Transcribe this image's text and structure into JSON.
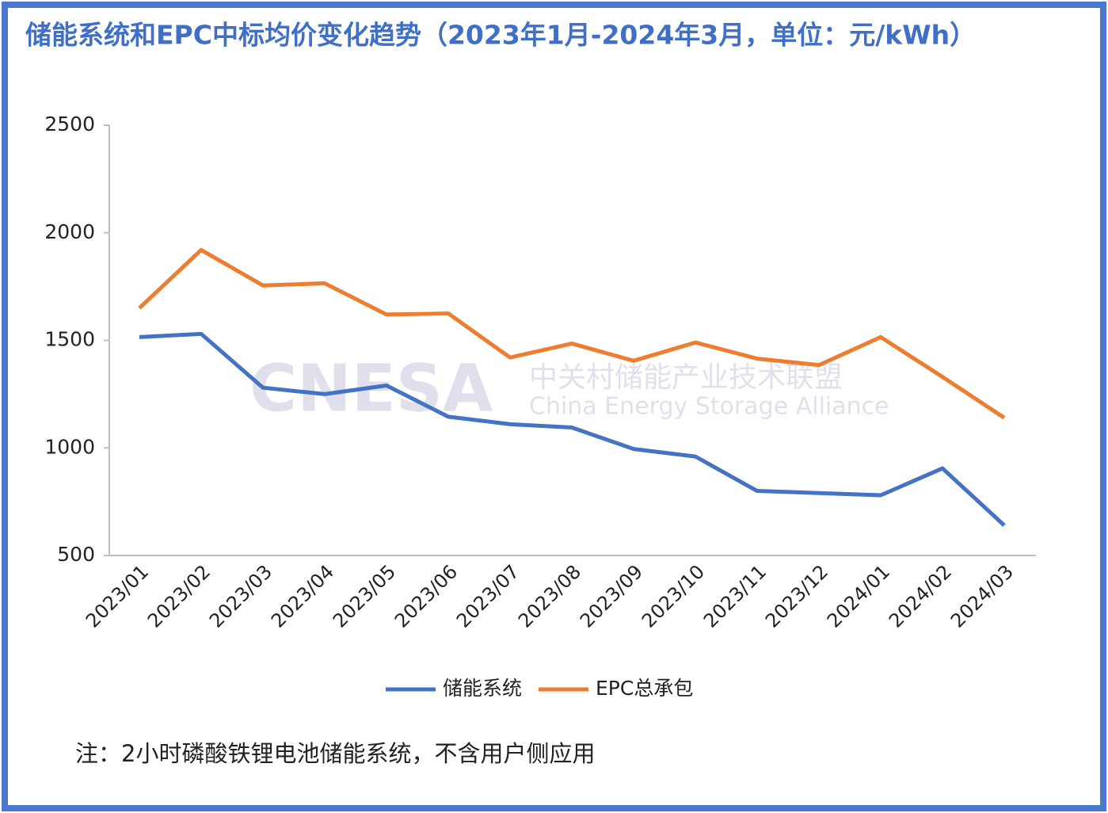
{
  "chart_data": {
    "type": "line",
    "title": "储能系统和EPC中标均价变化趋势（2023年1月-2024年3月，单位：元/kWh）",
    "categories": [
      "2023/01",
      "2023/02",
      "2023/03",
      "2023/04",
      "2023/05",
      "2023/06",
      "2023/07",
      "2023/08",
      "2023/09",
      "2023/10",
      "2023/11",
      "2023/12",
      "2024/01",
      "2024/02",
      "2024/03"
    ],
    "series": [
      {
        "name": "储能系统",
        "color": "#4472c4",
        "values": [
          1515,
          1530,
          1280,
          1250,
          1290,
          1145,
          1110,
          1095,
          995,
          960,
          800,
          790,
          780,
          905,
          640
        ]
      },
      {
        "name": "EPC总承包",
        "color": "#ed7d31",
        "values": [
          1650,
          1920,
          1755,
          1765,
          1620,
          1625,
          1420,
          1485,
          1405,
          1490,
          1415,
          1385,
          1515,
          1330,
          1140
        ]
      }
    ],
    "ylim": [
      500,
      2500
    ],
    "yticks": [
      500,
      1000,
      1500,
      2000,
      2500
    ],
    "grid": false,
    "legend": "bottom",
    "watermark": {
      "logo": "CNESA",
      "name_cn": "中关村储能产业技术联盟",
      "name_en": "China Energy Storage Alliance"
    },
    "note": "注：2小时磷酸铁锂电池储能系统，不含用户侧应用"
  }
}
